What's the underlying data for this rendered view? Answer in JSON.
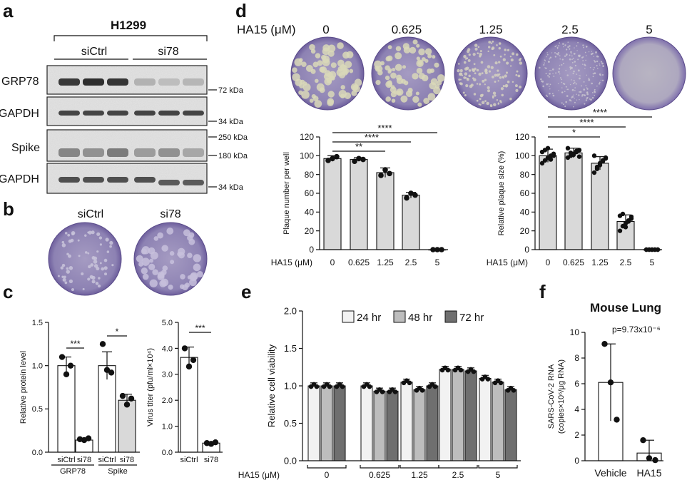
{
  "panels": {
    "a": "a",
    "b": "b",
    "c": "c",
    "d": "d",
    "e": "e",
    "f": "f"
  },
  "blot": {
    "cell_line": "H1299",
    "groups": [
      "siCtrl",
      "si78"
    ],
    "rows": [
      "GRP78",
      "GAPDH",
      "Spike",
      "GAPDH"
    ],
    "markers": [
      "72 kDa",
      "34 kDa",
      "250 kDa",
      "180 kDa",
      "34 kDa"
    ]
  },
  "plaque_b": {
    "labels": [
      "siCtrl",
      "si78"
    ]
  },
  "plaque_d": {
    "header": "HA15 (μM)",
    "conc": [
      "0",
      "0.625",
      "1.25",
      "2.5",
      "5"
    ]
  },
  "chart_data": [
    {
      "id": "c1",
      "type": "bar",
      "ylabel": "Relative protein level",
      "ylim": [
        0,
        1.5
      ],
      "yticks": [
        "0.0",
        "0.5",
        "1.0",
        "1.5"
      ],
      "categories": [
        "siCtrl",
        "si78",
        "siCtrl",
        "si78"
      ],
      "groups": [
        "GRP78",
        "Spike"
      ],
      "values": [
        1.0,
        0.14,
        1.0,
        0.6
      ],
      "errors": [
        0.1,
        0.02,
        0.16,
        0.07
      ],
      "points": [
        [
          1.1,
          0.9,
          1.0
        ],
        [
          0.15,
          0.14,
          0.16
        ],
        [
          1.25,
          0.95,
          0.92
        ],
        [
          0.65,
          0.55,
          0.62
        ]
      ],
      "sig": [
        {
          "text": "***"
        },
        {
          "text": "*"
        }
      ]
    },
    {
      "id": "c2",
      "type": "bar",
      "ylabel": "Virus titer (pfu/ml×10⁴)",
      "ylim": [
        0,
        5
      ],
      "yticks": [
        "0.0",
        "1.0",
        "2.0",
        "3.0",
        "4.0",
        "5.0"
      ],
      "categories": [
        "siCtrl",
        "si78"
      ],
      "values": [
        3.65,
        0.35
      ],
      "errors": [
        0.4,
        0.05
      ],
      "points": [
        [
          4.0,
          3.3,
          3.55
        ],
        [
          0.35,
          0.32,
          0.38
        ]
      ],
      "sig": [
        {
          "text": "***"
        }
      ]
    },
    {
      "id": "d1",
      "type": "bar",
      "ylabel": "Plaque number per well",
      "ylim": [
        0,
        120
      ],
      "yticks": [
        "0",
        "20",
        "40",
        "60",
        "80",
        "100",
        "120"
      ],
      "xlabel": "HA15 (μM)",
      "categories": [
        "0",
        "0.625",
        "1.25",
        "2.5",
        "5"
      ],
      "values": [
        97,
        96,
        82,
        58,
        0
      ],
      "errors": [
        3,
        2,
        5,
        3,
        0
      ],
      "points": [
        [
          95,
          97,
          99
        ],
        [
          94,
          97,
          96
        ],
        [
          79,
          85,
          81
        ],
        [
          55,
          60,
          58
        ],
        [
          0,
          0,
          0
        ]
      ],
      "sig": [
        {
          "text": "**"
        },
        {
          "text": "****"
        },
        {
          "text": "****"
        }
      ]
    },
    {
      "id": "d2",
      "type": "bar",
      "ylabel": "Relative plaque size (%)",
      "ylim": [
        0,
        120
      ],
      "yticks": [
        "0",
        "20",
        "40",
        "60",
        "80",
        "100",
        "120"
      ],
      "xlabel": "HA15 (μM)",
      "categories": [
        "0",
        "0.625",
        "1.25",
        "2.5",
        "5"
      ],
      "values": [
        100,
        103,
        92,
        30,
        0
      ],
      "errors": [
        7,
        5,
        7,
        7,
        0
      ],
      "points": [
        [
          92,
          95,
          98,
          100,
          102,
          104,
          106,
          108,
          96,
          100
        ],
        [
          98,
          100,
          102,
          104,
          106,
          108,
          103,
          101,
          105,
          99
        ],
        [
          82,
          86,
          90,
          94,
          98,
          100,
          88,
          92,
          95,
          97
        ],
        [
          20,
          25,
          28,
          30,
          33,
          36,
          38,
          24,
          31,
          35
        ],
        [
          0,
          0,
          0,
          0,
          0,
          0,
          0,
          0,
          0,
          0
        ]
      ],
      "sig": [
        {
          "text": "*"
        },
        {
          "text": "****"
        },
        {
          "text": "****"
        }
      ]
    },
    {
      "id": "e",
      "type": "bar",
      "ylabel": "Relative cell viability",
      "ylim": [
        0,
        2.0
      ],
      "yticks": [
        "0.0",
        "0.5",
        "1.0",
        "1.5",
        "2.0"
      ],
      "xlabel": "HA15 (μM)",
      "categories": [
        "0",
        "0.625",
        "1.25",
        "2.5",
        "5"
      ],
      "legend": [
        "24 hr",
        "48 hr",
        "72 hr"
      ],
      "colors": [
        "#f2f2f2",
        "#bdbdbd",
        "#6f6f6f"
      ],
      "series": [
        {
          "name": "24 hr",
          "values": [
            1.0,
            1.0,
            1.05,
            1.22,
            1.1
          ]
        },
        {
          "name": "48 hr",
          "values": [
            1.0,
            0.93,
            0.95,
            1.22,
            1.05
          ]
        },
        {
          "name": "72 hr",
          "values": [
            1.0,
            0.93,
            1.0,
            1.2,
            0.95
          ]
        }
      ]
    },
    {
      "id": "f",
      "type": "bar",
      "title": "Mouse Lung",
      "ylabel": "SARS-CoV-2 RNA (copies×10⁶/μg RNA)",
      "ylim": [
        0,
        10
      ],
      "yticks": [
        "0",
        "2",
        "4",
        "6",
        "8",
        "10"
      ],
      "categories": [
        "Vehicle",
        "HA15"
      ],
      "values": [
        6.1,
        0.6
      ],
      "errors": [
        3.0,
        1.0
      ],
      "points": [
        [
          9.1,
          6.1,
          3.2
        ],
        [
          1.6,
          0.2,
          0.05
        ]
      ],
      "annotation": "p=9.73x10⁻⁶"
    }
  ]
}
